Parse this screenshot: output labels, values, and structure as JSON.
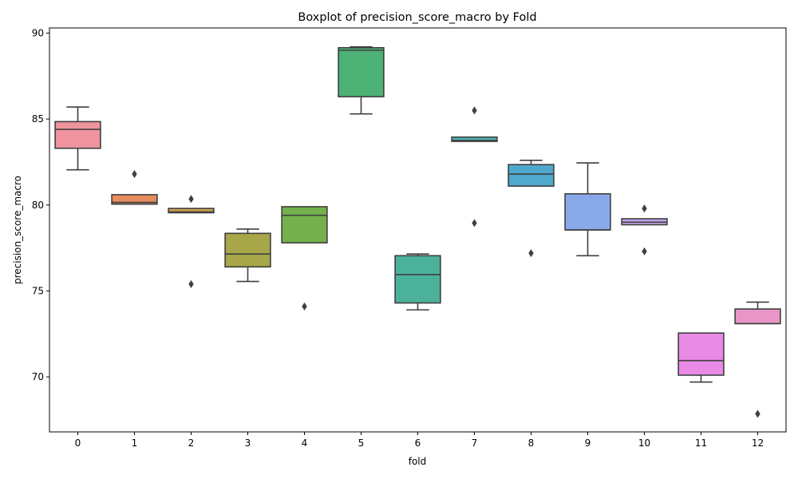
{
  "chart_data": {
    "type": "boxplot",
    "title": "Boxplot of precision_score_macro by Fold",
    "xlabel": "fold",
    "ylabel": "precision_score_macro",
    "ylim": [
      66.8,
      90.3
    ],
    "yticks": [
      70,
      75,
      80,
      85,
      90
    ],
    "grid": false,
    "categories": [
      "0",
      "1",
      "2",
      "3",
      "4",
      "5",
      "6",
      "7",
      "8",
      "9",
      "10",
      "11",
      "12"
    ],
    "boxes": [
      {
        "category": "0",
        "color": "#ef949f",
        "whisker_low": 82.05,
        "q1": 83.3,
        "median": 84.4,
        "q3": 84.85,
        "whisker_high": 85.7,
        "outliers": []
      },
      {
        "category": "1",
        "color": "#e58d5e",
        "whisker_low": 80.05,
        "q1": 80.05,
        "median": 80.15,
        "q3": 80.6,
        "whisker_high": 80.6,
        "outliers": [
          81.8
        ]
      },
      {
        "category": "2",
        "color": "#d0a04e",
        "whisker_low": 79.55,
        "q1": 79.55,
        "median": 79.6,
        "q3": 79.8,
        "whisker_high": 79.8,
        "outliers": [
          80.35,
          75.4
        ]
      },
      {
        "category": "3",
        "color": "#a7a649",
        "whisker_low": 75.55,
        "q1": 76.4,
        "median": 77.15,
        "q3": 78.35,
        "whisker_high": 78.6,
        "outliers": []
      },
      {
        "category": "4",
        "color": "#74b14d",
        "whisker_low": 77.8,
        "q1": 77.8,
        "median": 79.4,
        "q3": 79.9,
        "whisker_high": 79.9,
        "outliers": [
          74.1
        ]
      },
      {
        "category": "5",
        "color": "#4db275",
        "whisker_low": 85.3,
        "q1": 86.3,
        "median": 89.0,
        "q3": 89.15,
        "whisker_high": 89.2,
        "outliers": []
      },
      {
        "category": "6",
        "color": "#4cb19a",
        "whisker_low": 73.9,
        "q1": 74.3,
        "median": 75.95,
        "q3": 77.05,
        "whisker_high": 77.15,
        "outliers": []
      },
      {
        "category": "7",
        "color": "#4eb0b0",
        "whisker_low": 83.7,
        "q1": 83.7,
        "median": 83.75,
        "q3": 83.95,
        "whisker_high": 83.95,
        "outliers": [
          85.5,
          78.95
        ]
      },
      {
        "category": "8",
        "color": "#4fa9cd",
        "whisker_low": 81.1,
        "q1": 81.1,
        "median": 81.8,
        "q3": 82.35,
        "whisker_high": 82.6,
        "outliers": [
          77.2
        ]
      },
      {
        "category": "9",
        "color": "#89a9ea",
        "whisker_low": 77.05,
        "q1": 78.55,
        "median": 78.55,
        "q3": 80.65,
        "whisker_high": 82.45,
        "outliers": []
      },
      {
        "category": "10",
        "color": "#c2a4ea",
        "whisker_low": 78.85,
        "q1": 78.85,
        "median": 79.0,
        "q3": 79.2,
        "whisker_high": 79.2,
        "outliers": [
          79.8,
          77.3
        ]
      },
      {
        "category": "11",
        "color": "#e88ae6",
        "whisker_low": 69.7,
        "q1": 70.1,
        "median": 70.95,
        "q3": 72.55,
        "whisker_high": 72.55,
        "outliers": []
      },
      {
        "category": "12",
        "color": "#e896c6",
        "whisker_low": 73.1,
        "q1": 73.1,
        "median": 73.1,
        "q3": 73.95,
        "whisker_high": 74.35,
        "outliers": [
          67.85
        ]
      }
    ]
  }
}
